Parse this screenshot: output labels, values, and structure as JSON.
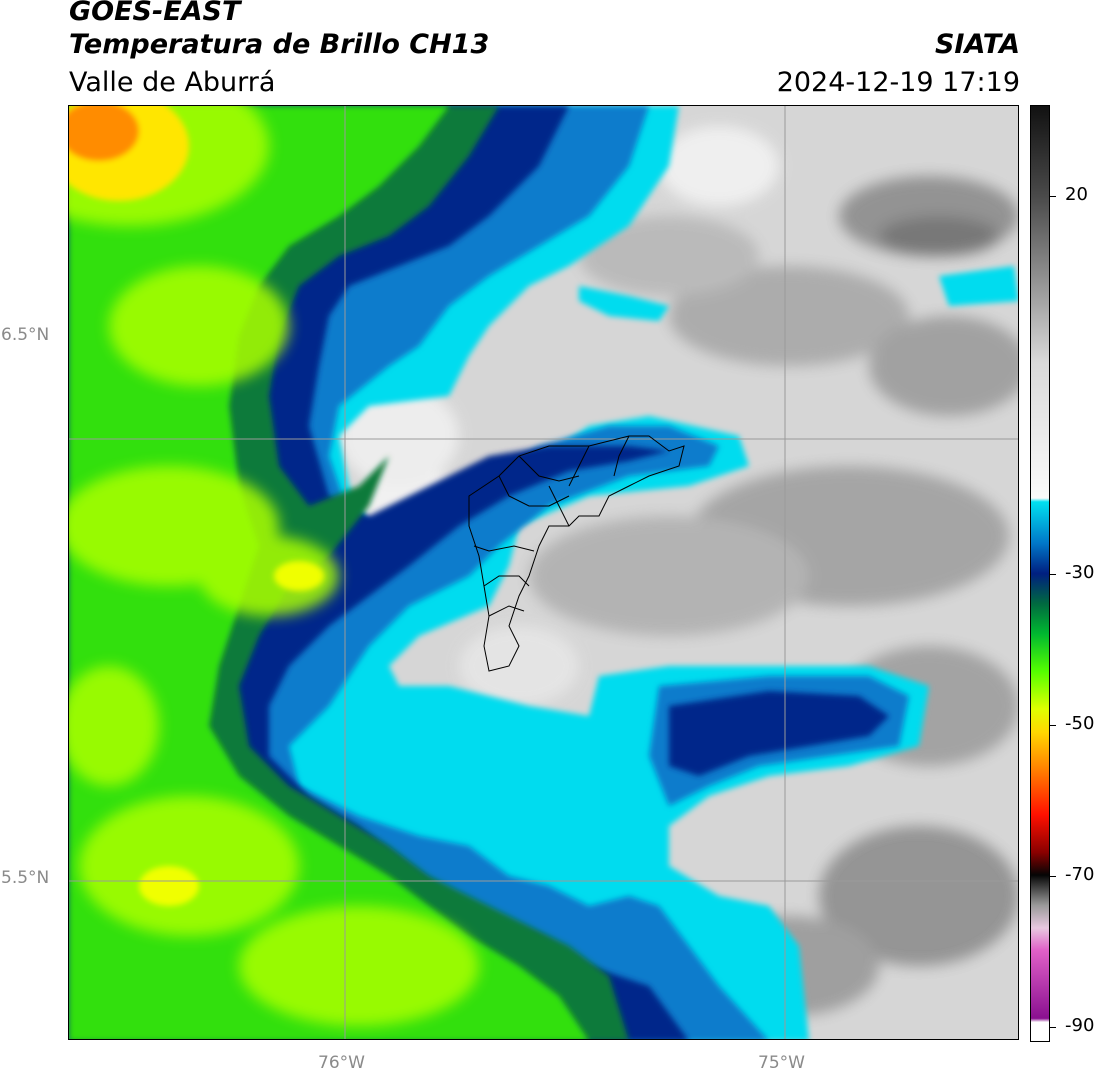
{
  "header": {
    "satellite": "GOES-EAST",
    "product": "Temperatura de Brillo CH13",
    "region": "Valle de Aburrá",
    "organization": "SIATA",
    "datetime": "2024-12-19 17:19"
  },
  "map": {
    "lat_ticks": [
      "6.5°N",
      "5.5°N"
    ],
    "lon_ticks": [
      "76°W",
      "75°W"
    ],
    "colors": {
      "grid": "#9a9a9a",
      "boundary": "#000000",
      "warm_surface": "#d8d8d8"
    }
  },
  "colorbar": {
    "ticks": [
      "20",
      "-30",
      "-50",
      "-70",
      "-90"
    ],
    "range": [
      -92,
      32
    ],
    "stops": [
      {
        "t": 32,
        "color": "#111111"
      },
      {
        "t": 20,
        "color": "#4a4a4a"
      },
      {
        "t": -2,
        "color": "#d9d9d9"
      },
      {
        "t": -20,
        "color": "#fafafa"
      },
      {
        "t": -20.5,
        "color": "#00e0f0"
      },
      {
        "t": -26,
        "color": "#0077c8"
      },
      {
        "t": -30,
        "color": "#001f80"
      },
      {
        "t": -34,
        "color": "#006a40"
      },
      {
        "t": -38,
        "color": "#00b830"
      },
      {
        "t": -43,
        "color": "#55ff00"
      },
      {
        "t": -48,
        "color": "#e0ff00"
      },
      {
        "t": -51,
        "color": "#ffd800"
      },
      {
        "t": -56,
        "color": "#ff8000"
      },
      {
        "t": -62,
        "color": "#ff1000"
      },
      {
        "t": -67,
        "color": "#8a0000"
      },
      {
        "t": -70,
        "color": "#050505"
      },
      {
        "t": -74,
        "color": "#9a9a9a"
      },
      {
        "t": -77,
        "color": "#e8c8e0"
      },
      {
        "t": -80,
        "color": "#e060c8"
      },
      {
        "t": -89,
        "color": "#8a1090"
      },
      {
        "t": -89.5,
        "color": "#ffffff"
      },
      {
        "t": -92,
        "color": "#ffffff"
      }
    ]
  }
}
